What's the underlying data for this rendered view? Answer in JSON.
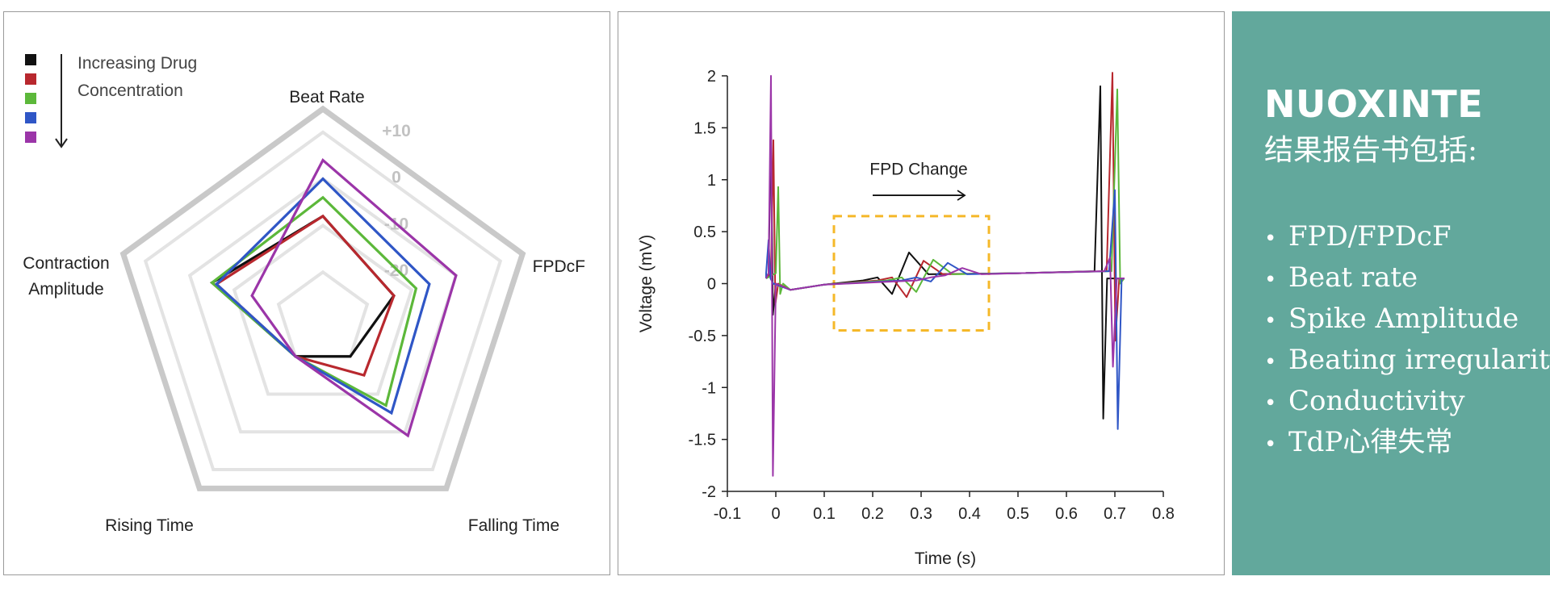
{
  "radar_panel": {
    "legend_title_lines": [
      "Increasing Drug",
      "Concentration"
    ],
    "legend_colors": [
      "#111111",
      "#b8282e",
      "#5cb83a",
      "#2f56c6",
      "#9b35a8"
    ]
  },
  "report": {
    "brand": "NUOXINTE",
    "subtitle": "结果报告书包括:",
    "items": [
      "FPD/FPDcF",
      "Beat rate",
      "Spike Amplitude",
      "Beating irregularity",
      "Conductivity",
      "TdP心律失常"
    ],
    "background": "#62a89c"
  },
  "chart_data": [
    {
      "type": "radar",
      "axes": [
        "Beat Rate",
        "FPDcF",
        "Falling Time",
        "Rising Time",
        "Contraction Amplitude"
      ],
      "ring_labels": [
        "+10",
        "0",
        "-10",
        "-20"
      ],
      "ring_values": [
        10,
        0,
        -10,
        -20
      ],
      "range": [
        -30,
        15
      ],
      "series": [
        {
          "color": "#111111",
          "values": [
            -8,
            -14,
            -20,
            -20,
            -5
          ]
        },
        {
          "color": "#b8282e",
          "values": [
            -8,
            -14,
            -15,
            -20,
            -6
          ]
        },
        {
          "color": "#5cb83a",
          "values": [
            -4,
            -9,
            -7,
            -20,
            -5
          ]
        },
        {
          "color": "#2f56c6",
          "values": [
            0,
            -6,
            -5,
            -20,
            -6
          ]
        },
        {
          "color": "#9b35a8",
          "values": [
            4,
            0,
            1,
            -20,
            -14
          ]
        }
      ]
    },
    {
      "type": "line",
      "xlabel": "Time (s)",
      "ylabel": "Voltage (mV)",
      "xlim": [
        -0.1,
        0.8
      ],
      "ylim": [
        -2,
        2
      ],
      "xticks": [
        -0.1,
        0,
        0.1,
        0.2,
        0.3,
        0.4,
        0.5,
        0.6,
        0.7,
        0.8
      ],
      "yticks": [
        -2,
        -1.5,
        -1,
        -0.5,
        0,
        0.5,
        1,
        1.5,
        2
      ],
      "annotation": {
        "text": "FPD Change",
        "box_x": [
          0.12,
          0.44
        ],
        "box_y": [
          -0.45,
          0.65
        ],
        "arrow_x": [
          0.2,
          0.39
        ],
        "arrow_y": 0.85,
        "box_color": "#f5b829"
      },
      "series": [
        {
          "color": "#111111",
          "spike_t": -0.01,
          "spike_hi": 1.5,
          "spike_lo": -0.3,
          "wave_t": 0.24,
          "wave_neg": -0.1,
          "wave_pos": 0.3,
          "end_t": 0.67,
          "end_hi": 1.9,
          "end_lo": -1.3
        },
        {
          "color": "#b8282e",
          "spike_t": -0.005,
          "spike_hi": 1.38,
          "spike_lo": -0.2,
          "wave_t": 0.27,
          "wave_neg": -0.13,
          "wave_pos": 0.22,
          "end_t": 0.695,
          "end_hi": 2.03,
          "end_lo": -0.55
        },
        {
          "color": "#5cb83a",
          "spike_t": 0.005,
          "spike_hi": 0.93,
          "spike_lo": -0.1,
          "wave_t": 0.29,
          "wave_neg": -0.08,
          "wave_pos": 0.23,
          "end_t": 0.705,
          "end_hi": 1.87,
          "end_lo": 0.0
        },
        {
          "color": "#2f56c6",
          "spike_t": -0.015,
          "spike_hi": 0.42,
          "spike_lo": 0.05,
          "wave_t": 0.32,
          "wave_neg": 0.02,
          "wave_pos": 0.2,
          "end_t": 0.7,
          "end_hi": 0.9,
          "end_lo": -1.4
        },
        {
          "color": "#9b35a8",
          "spike_t": -0.01,
          "spike_hi": 2.0,
          "spike_lo": -1.85,
          "wave_t": 0.35,
          "wave_neg": 0.08,
          "wave_pos": 0.15,
          "end_t": 0.69,
          "end_hi": 0.25,
          "end_lo": -0.8
        }
      ]
    }
  ]
}
